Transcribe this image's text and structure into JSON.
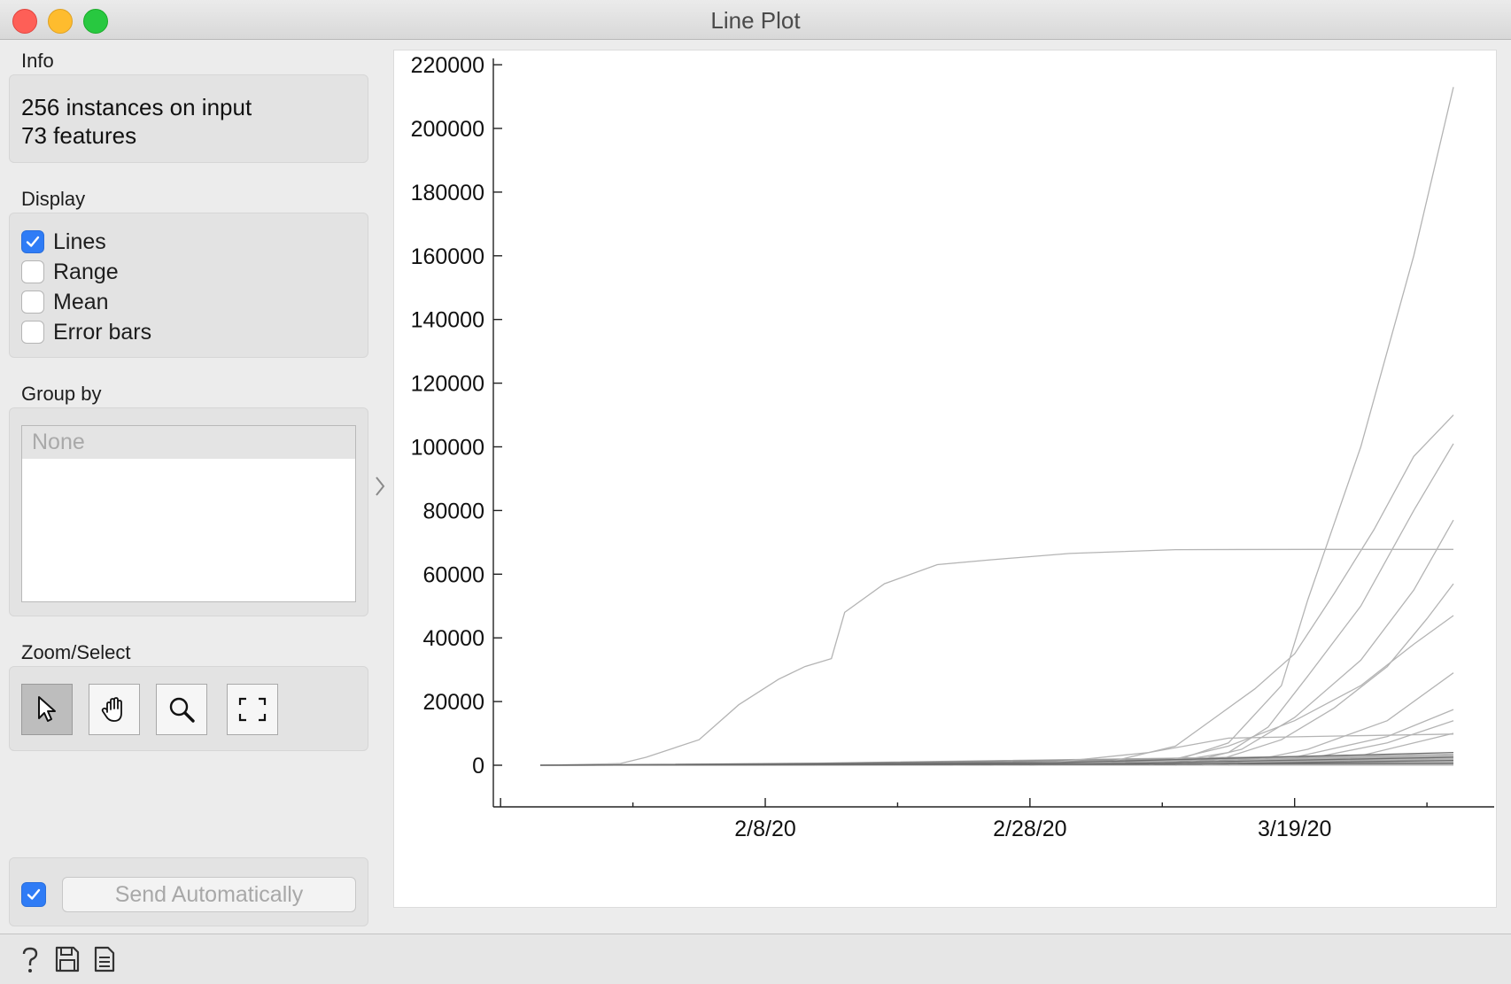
{
  "window": {
    "title": "Line Plot"
  },
  "info": {
    "label": "Info",
    "line1": "256 instances on input",
    "line2": "73 features"
  },
  "display": {
    "label": "Display",
    "options": [
      {
        "label": "Lines",
        "checked": true
      },
      {
        "label": "Range",
        "checked": false
      },
      {
        "label": "Mean",
        "checked": false
      },
      {
        "label": "Error bars",
        "checked": false
      }
    ]
  },
  "group_by": {
    "label": "Group by",
    "selected": "None"
  },
  "zoom_select": {
    "label": "Zoom/Select",
    "tools": [
      "select-pointer",
      "pan-hand",
      "zoom-magnifier",
      "reset-zoom-frame"
    ],
    "active_tool": "select-pointer"
  },
  "commit": {
    "auto_checked": true,
    "button_label": "Send Automatically"
  },
  "statusbar": {
    "icons": [
      "help-icon",
      "save-icon",
      "report-icon"
    ]
  },
  "accent_color": "#2f7cf6",
  "chart_data": {
    "type": "line",
    "title": "",
    "xlabel": "",
    "ylabel": "",
    "x_tick_labels": [
      "2/8/20",
      "2/28/20",
      "3/19/20"
    ],
    "y_ticks": [
      "0",
      "20000",
      "40000",
      "60000",
      "80000",
      "100000",
      "120000",
      "140000",
      "160000",
      "180000",
      "200000",
      "220000"
    ],
    "ylim": [
      -10000,
      222000
    ],
    "x_range": [
      "1/22/20",
      "3/31/20"
    ],
    "line_color": "#b4b4b4",
    "series_note_count": 256,
    "series": [
      {
        "x": [
          "1/22/20",
          "1/28/20",
          "1/30/20",
          "2/3/20",
          "2/6/20",
          "2/9/20",
          "2/11/20",
          "2/13/20",
          "2/14/20",
          "2/17/20",
          "2/21/20",
          "2/25/20",
          "3/2/20",
          "3/10/20",
          "3/20/20",
          "3/31/20"
        ],
        "values": [
          0,
          500,
          2500,
          8000,
          19000,
          27000,
          31000,
          33500,
          48000,
          57000,
          63000,
          64500,
          66500,
          67700,
          67800,
          67800
        ]
      },
      {
        "x": [
          "2/28/20",
          "3/5/20",
          "3/10/20",
          "3/14/20",
          "3/18/20",
          "3/20/20",
          "3/24/20",
          "3/28/20",
          "3/31/20"
        ],
        "values": [
          0,
          300,
          1500,
          7000,
          25000,
          52000,
          100000,
          160000,
          213000
        ]
      },
      {
        "x": [
          "3/8/20",
          "3/14/20",
          "3/17/20",
          "3/20/20",
          "3/24/20",
          "3/28/20",
          "3/31/20"
        ],
        "values": [
          0,
          4000,
          12000,
          28000,
          50000,
          80000,
          101000
        ]
      },
      {
        "x": [
          "2/25/20",
          "3/5/20",
          "3/10/20",
          "3/13/20",
          "3/16/20",
          "3/19/20",
          "3/22/20",
          "3/25/20",
          "3/28/20",
          "3/31/20"
        ],
        "values": [
          0,
          1000,
          6000,
          15000,
          24000,
          35000,
          54000,
          74000,
          97000,
          110000
        ]
      },
      {
        "x": [
          "3/10/20",
          "3/15/20",
          "3/19/20",
          "3/24/20",
          "3/28/20",
          "3/31/20"
        ],
        "values": [
          0,
          5000,
          15000,
          33000,
          55000,
          77000
        ]
      },
      {
        "x": [
          "3/12/20",
          "3/18/20",
          "3/22/20",
          "3/26/20",
          "3/29/20",
          "3/31/20"
        ],
        "values": [
          0,
          8000,
          18000,
          31000,
          46000,
          57000
        ]
      },
      {
        "x": [
          "3/8/20",
          "3/14/20",
          "3/19/20",
          "3/24/20",
          "3/28/20",
          "3/31/20"
        ],
        "values": [
          0,
          6000,
          14000,
          25000,
          38000,
          47000
        ]
      },
      {
        "x": [
          "3/14/20",
          "3/20/20",
          "3/26/20",
          "3/31/20"
        ],
        "values": [
          0,
          5000,
          14000,
          29000
        ]
      },
      {
        "x": [
          "2/22/20",
          "3/1/20",
          "3/8/20",
          "3/14/20",
          "3/20/20",
          "3/31/20"
        ],
        "values": [
          0,
          1000,
          4000,
          8500,
          9000,
          9800
        ]
      },
      {
        "x": [
          "3/10/20",
          "3/19/20",
          "3/26/20",
          "3/31/20"
        ],
        "values": [
          0,
          2500,
          9000,
          17500
        ]
      },
      {
        "x": [
          "3/12/20",
          "3/20/20",
          "3/26/20",
          "3/31/20"
        ],
        "values": [
          0,
          2000,
          7000,
          14000
        ]
      },
      {
        "x": [
          "3/14/20",
          "3/24/20",
          "3/31/20"
        ],
        "values": [
          0,
          3000,
          10000
        ]
      },
      {
        "x": [
          "1/22/20",
          "3/1/20",
          "3/31/20"
        ],
        "values": [
          0,
          800,
          4000
        ]
      },
      {
        "x": [
          "1/22/20",
          "3/5/20",
          "3/31/20"
        ],
        "values": [
          0,
          500,
          2500
        ]
      },
      {
        "x": [
          "1/22/20",
          "3/10/20",
          "3/31/20"
        ],
        "values": [
          0,
          300,
          1500
        ]
      },
      {
        "x": [
          "1/22/20",
          "3/31/20"
        ],
        "values": [
          0,
          600
        ]
      }
    ]
  }
}
